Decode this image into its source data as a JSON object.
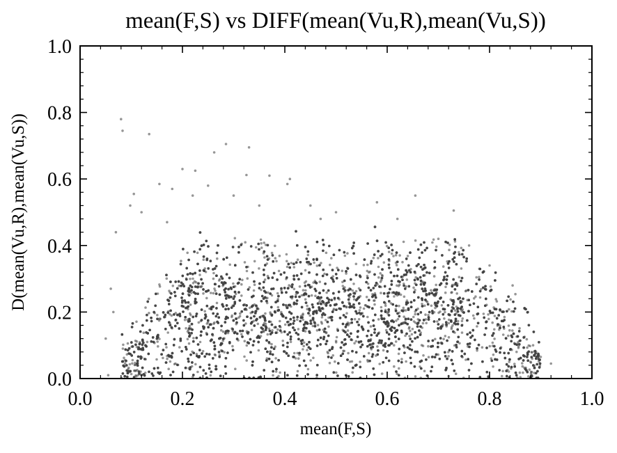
{
  "chart_data": {
    "type": "scatter",
    "title": "mean(F,S) vs DIFF(mean(Vu,R),mean(Vu,S))",
    "xlabel": "mean(F,S)",
    "ylabel": "D(mean(Vu,R),mean(Vu,S))",
    "xlim": [
      0.0,
      1.0
    ],
    "ylim": [
      0.0,
      1.0
    ],
    "xticks": [
      "0.0",
      "0.2",
      "0.4",
      "0.6",
      "0.8",
      "1.0"
    ],
    "yticks": [
      "0.0",
      "0.2",
      "0.4",
      "0.6",
      "0.8",
      "1.0"
    ],
    "grid": false,
    "point_color": "#404040",
    "series": [
      {
        "points_outliers": [
          [
            0.08,
            0.78
          ],
          [
            0.083,
            0.745
          ],
          [
            0.135,
            0.735
          ],
          [
            0.2,
            0.63
          ],
          [
            0.225,
            0.625
          ],
          [
            0.285,
            0.705
          ],
          [
            0.33,
            0.695
          ],
          [
            0.262,
            0.68
          ],
          [
            0.325,
            0.612
          ],
          [
            0.37,
            0.61
          ],
          [
            0.41,
            0.6
          ],
          [
            0.405,
            0.585
          ],
          [
            0.155,
            0.585
          ],
          [
            0.18,
            0.57
          ],
          [
            0.105,
            0.555
          ],
          [
            0.25,
            0.58
          ],
          [
            0.655,
            0.55
          ],
          [
            0.73,
            0.505
          ],
          [
            0.58,
            0.53
          ],
          [
            0.07,
            0.44
          ],
          [
            0.098,
            0.52
          ],
          [
            0.5,
            0.5
          ],
          [
            0.47,
            0.48
          ],
          [
            0.06,
            0.27
          ],
          [
            0.065,
            0.2
          ],
          [
            0.05,
            0.12
          ],
          [
            0.055,
            0.01
          ],
          [
            0.92,
            0.045
          ],
          [
            0.9,
            0.065
          ],
          [
            0.885,
            0.1
          ],
          [
            0.875,
            0.2
          ],
          [
            0.845,
            0.28
          ],
          [
            0.8,
            0.34
          ],
          [
            0.78,
            0.33
          ],
          [
            0.76,
            0.4
          ],
          [
            0.7,
            0.42
          ],
          [
            0.74,
            0.38
          ],
          [
            0.17,
            0.47
          ],
          [
            0.12,
            0.5
          ],
          [
            0.22,
            0.55
          ],
          [
            0.3,
            0.55
          ],
          [
            0.35,
            0.52
          ],
          [
            0.62,
            0.48
          ],
          [
            0.45,
            0.52
          ],
          [
            0.88,
            0.05
          ]
        ]
      }
    ]
  }
}
